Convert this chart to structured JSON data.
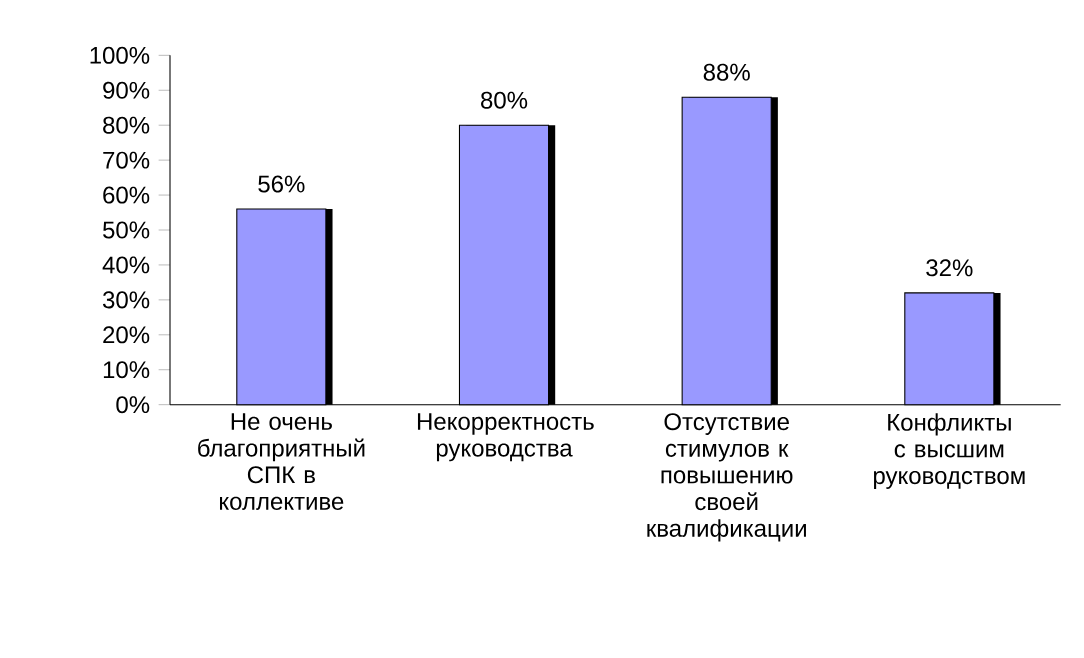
{
  "chart_data": {
    "type": "bar",
    "categories": [
      "Не очень благоприятный СПК в коллективе",
      "Некорректность руководства",
      "Отсутствие стимулов к повышению своей квалификации",
      "Конфликты с высшим руководством"
    ],
    "values": [
      56,
      80,
      88,
      32
    ],
    "value_labels": [
      "56%",
      "80%",
      "88%",
      "32%"
    ],
    "color": "#9999ff",
    "ylim": [
      0,
      100
    ],
    "yticks": [
      {
        "value": 0,
        "label": "0%"
      },
      {
        "value": 10,
        "label": "10%"
      },
      {
        "value": 20,
        "label": "20%"
      },
      {
        "value": 30,
        "label": "30%"
      },
      {
        "value": 40,
        "label": "40%"
      },
      {
        "value": 50,
        "label": "50%"
      },
      {
        "value": 60,
        "label": "60%"
      },
      {
        "value": 70,
        "label": "70%"
      },
      {
        "value": 80,
        "label": "80%"
      },
      {
        "value": 90,
        "label": "90%"
      },
      {
        "value": 100,
        "label": "100%"
      }
    ]
  }
}
